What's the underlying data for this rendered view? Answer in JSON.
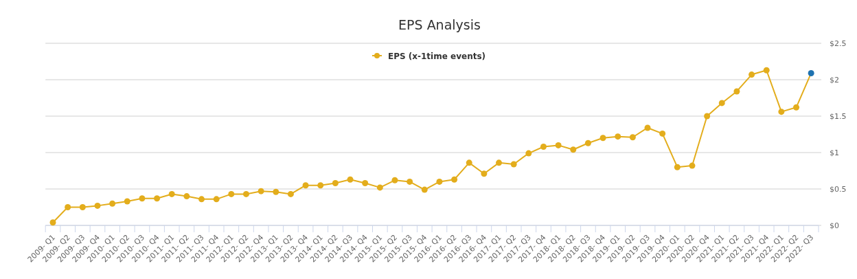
{
  "chart_data": {
    "type": "line",
    "title": "EPS Analysis",
    "categories": [
      "2009- Q1",
      "2009- Q2",
      "2009- Q3",
      "2009- Q4",
      "2010- Q1",
      "2010- Q2",
      "2010- Q3",
      "2010- Q4",
      "2011- Q1",
      "2011- Q2",
      "2011- Q3",
      "2011- Q4",
      "2012- Q1",
      "2012- Q2",
      "2012- Q4",
      "2013- Q1",
      "2013- Q2",
      "2013- Q4",
      "2014- Q1",
      "2014- Q2",
      "2014- Q3",
      "2014- Q4",
      "2015- Q1",
      "2015- Q2",
      "2015- Q3",
      "2015- Q4",
      "2016- Q1",
      "2016- Q2",
      "2016- Q3",
      "2016- Q4",
      "2017- Q1",
      "2017- Q2",
      "2017- Q3",
      "2017- Q4",
      "2018- Q1",
      "2018- Q2",
      "2018- Q3",
      "2018- Q4",
      "2019- Q1",
      "2019- Q2",
      "2019- Q3",
      "2019- Q4",
      "2020- Q1",
      "2020- Q2",
      "2020- Q4",
      "2021- Q1",
      "2021- Q2",
      "2021- Q3",
      "2021- Q4",
      "2022- Q1",
      "2022- Q2",
      "2022- Q3"
    ],
    "series": [
      {
        "name": "EPS (x-1time events)",
        "color": "#e3ad1c",
        "colors": [
          "#e3ad1c",
          "#e3ad1c",
          "#e3ad1c",
          "#e3ad1c",
          "#e3ad1c",
          "#e3ad1c",
          "#e3ad1c",
          "#e3ad1c",
          "#e3ad1c",
          "#e3ad1c",
          "#e3ad1c",
          "#e3ad1c",
          "#e3ad1c",
          "#e3ad1c",
          "#e3ad1c",
          "#e3ad1c",
          "#e3ad1c",
          "#e3ad1c",
          "#e3ad1c",
          "#e3ad1c",
          "#e3ad1c",
          "#e3ad1c",
          "#e3ad1c",
          "#e3ad1c",
          "#e3ad1c",
          "#e3ad1c",
          "#e3ad1c",
          "#e3ad1c",
          "#e3ad1c",
          "#e3ad1c",
          "#e3ad1c",
          "#e3ad1c",
          "#e3ad1c",
          "#e3ad1c",
          "#e3ad1c",
          "#e3ad1c",
          "#e3ad1c",
          "#e3ad1c",
          "#e3ad1c",
          "#e3ad1c",
          "#e3ad1c",
          "#e3ad1c",
          "#e3ad1c",
          "#e3ad1c",
          "#e3ad1c",
          "#e3ad1c",
          "#e3ad1c",
          "#e3ad1c",
          "#e3ad1c",
          "#e3ad1c",
          "#e3ad1c",
          "#1f72b0"
        ],
        "values": [
          0.04,
          0.25,
          0.25,
          0.27,
          0.3,
          0.33,
          0.37,
          0.37,
          0.43,
          0.4,
          0.36,
          0.36,
          0.43,
          0.43,
          0.47,
          0.46,
          0.43,
          0.55,
          0.55,
          0.58,
          0.63,
          0.58,
          0.52,
          0.62,
          0.6,
          0.49,
          0.6,
          0.63,
          0.86,
          0.71,
          0.86,
          0.84,
          0.99,
          1.08,
          1.1,
          1.04,
          1.13,
          1.2,
          1.22,
          1.21,
          1.34,
          1.26,
          0.8,
          0.82,
          1.5,
          1.68,
          1.84,
          2.07,
          2.13,
          1.56,
          1.62,
          2.09
        ]
      }
    ],
    "ylim": [
      0,
      2.5
    ],
    "yticks": [
      {
        "value": 0,
        "label": "$0"
      },
      {
        "value": 0.5,
        "label": "$0.5"
      },
      {
        "value": 1,
        "label": "$1"
      },
      {
        "value": 1.5,
        "label": "$1.5"
      },
      {
        "value": 2,
        "label": "$2"
      },
      {
        "value": 2.5,
        "label": "$2.5"
      }
    ],
    "grid": "y",
    "legend": "top",
    "marker": "circle",
    "line_style": "solid"
  }
}
